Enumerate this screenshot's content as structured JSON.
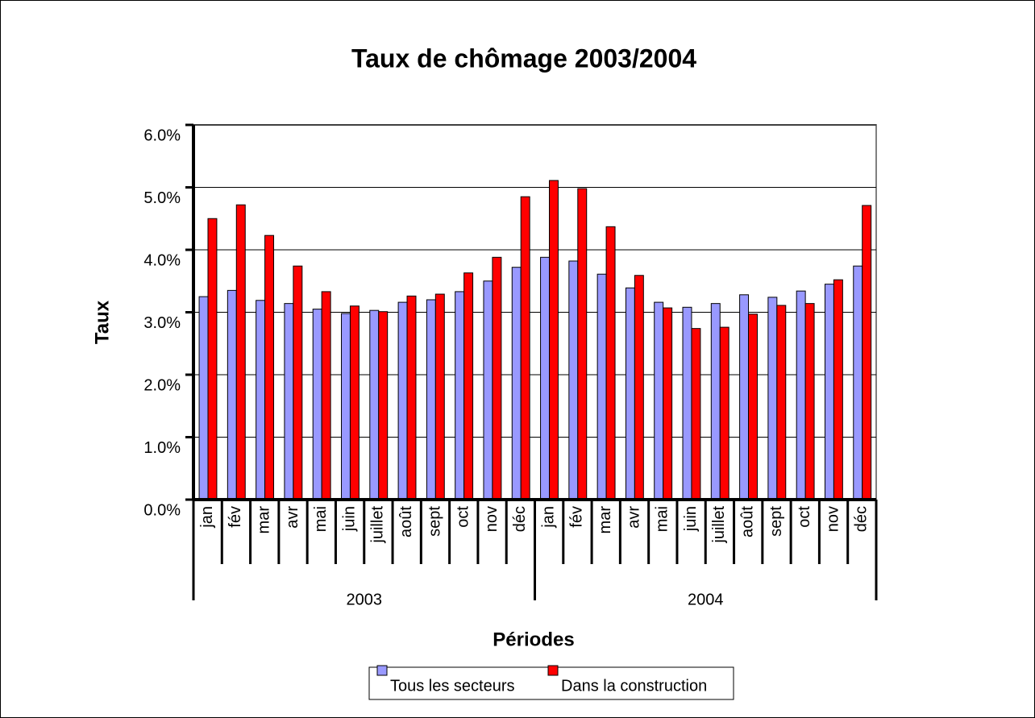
{
  "chart_data": {
    "type": "bar",
    "title": "Taux de chômage 2003/2004",
    "x_label": "Périodes",
    "y_label": "Taux",
    "categories": [
      "jan",
      "fév",
      "mar",
      "avr",
      "mai",
      "juin",
      "juillet",
      "août",
      "sept",
      "oct",
      "nov",
      "déc",
      "jan",
      "fév",
      "mar",
      "avr",
      "mai",
      "juin",
      "juillet",
      "août",
      "sept",
      "oct",
      "nov",
      "déc"
    ],
    "groups": [
      "2003",
      "2004"
    ],
    "series": [
      {
        "name": "Tous les secteurs",
        "color": "#9999ff",
        "values": [
          3.25,
          3.35,
          3.19,
          3.14,
          3.05,
          2.98,
          3.03,
          3.16,
          3.2,
          3.33,
          3.5,
          3.72,
          3.88,
          3.82,
          3.61,
          3.39,
          3.16,
          3.08,
          3.14,
          3.28,
          3.24,
          3.34,
          3.45,
          3.74
        ]
      },
      {
        "name": "Dans la construction",
        "color": "#ff0000",
        "values": [
          4.5,
          4.72,
          4.23,
          3.74,
          3.33,
          3.1,
          3.01,
          3.26,
          3.29,
          3.63,
          3.88,
          4.85,
          5.11,
          4.98,
          4.37,
          3.59,
          3.07,
          2.74,
          2.76,
          2.97,
          3.11,
          3.14,
          3.52,
          4.71
        ]
      }
    ],
    "ylim": [
      0,
      6
    ],
    "yticks": [
      {
        "value": 0,
        "label": "0.0%"
      },
      {
        "value": 1,
        "label": "1.0%"
      },
      {
        "value": 2,
        "label": "2.0%"
      },
      {
        "value": 3,
        "label": "3.0%"
      },
      {
        "value": 4,
        "label": "4.0%"
      },
      {
        "value": 5,
        "label": "5.0%"
      },
      {
        "value": 6,
        "label": "6.0%"
      }
    ],
    "grid": true,
    "legend": "bottom"
  }
}
